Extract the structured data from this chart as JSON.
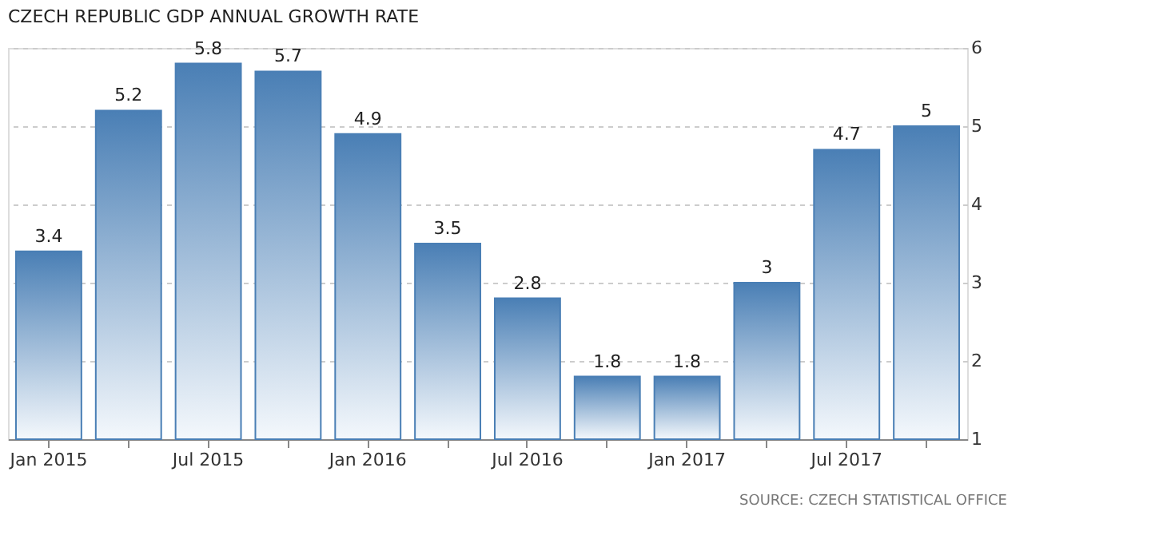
{
  "chart_data": {
    "type": "bar",
    "title": "CZECH REPUBLIC GDP ANNUAL GROWTH RATE",
    "categories": [
      "Jan 2015",
      null,
      "Jul 2015",
      null,
      "Jan 2016",
      null,
      "Jul 2016",
      null,
      "Jan 2017",
      null,
      "Jul 2017",
      null
    ],
    "values": [
      3.4,
      5.2,
      5.8,
      5.7,
      4.9,
      3.5,
      2.8,
      1.8,
      1.8,
      3.0,
      4.7,
      5.0
    ],
    "value_labels": [
      "3.4",
      "5.2",
      "5.8",
      "5.7",
      "4.9",
      "3.5",
      "2.8",
      "1.8",
      "1.8",
      "3",
      "4.7",
      "5"
    ],
    "color": "#4a7fb5",
    "ylim": [
      1,
      6
    ],
    "yticks": [
      1,
      2,
      3,
      4,
      5,
      6
    ],
    "grid": "y",
    "annotations": [
      "SOURCE: CZECH STATISTICAL OFFICE"
    ]
  }
}
